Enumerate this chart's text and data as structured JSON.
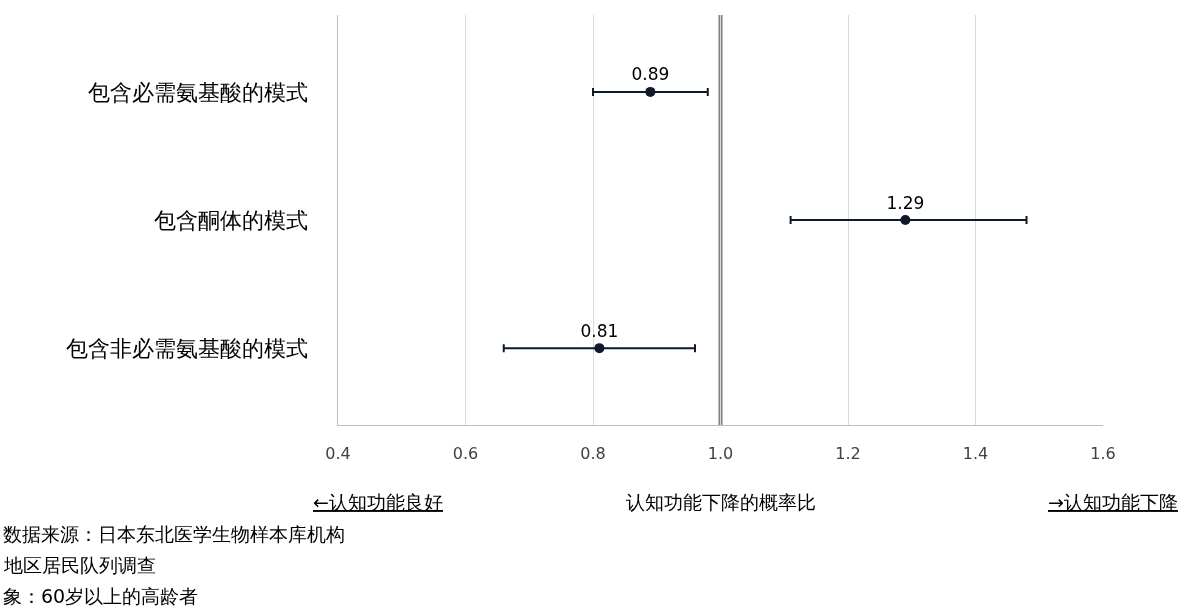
{
  "chart_data": {
    "type": "scatter",
    "orientation": "horizontal",
    "categories": [
      "包含必需氨基酸的模式",
      "包含酮体的模式",
      "包含非必需氨基酸的模式"
    ],
    "values": [
      0.89,
      1.29,
      0.81
    ],
    "errors": [
      [
        0.8,
        0.98
      ],
      [
        1.11,
        1.48
      ],
      [
        0.66,
        0.96
      ]
    ],
    "color": "#0d1b2a",
    "data_labels": true,
    "marker": "circle",
    "xlim": [
      0.4,
      1.6
    ],
    "xticks": [
      0.4,
      0.6,
      0.8,
      {
        "value": 1.0,
        "label": "1.0"
      },
      1.2,
      1.4,
      1.6
    ],
    "xlabel": "认知功能下降的概率比",
    "grid": "x",
    "ref_lines": [
      {
        "axis": "x",
        "value": 1.0,
        "color": "#808080"
      }
    ],
    "annotations": [
      "←认知功能良好",
      "→认知功能下降",
      "数据来源：日本东北医学生物样本库机构",
      "地区居民队列调查",
      "象：60岁以上的高龄者"
    ]
  }
}
